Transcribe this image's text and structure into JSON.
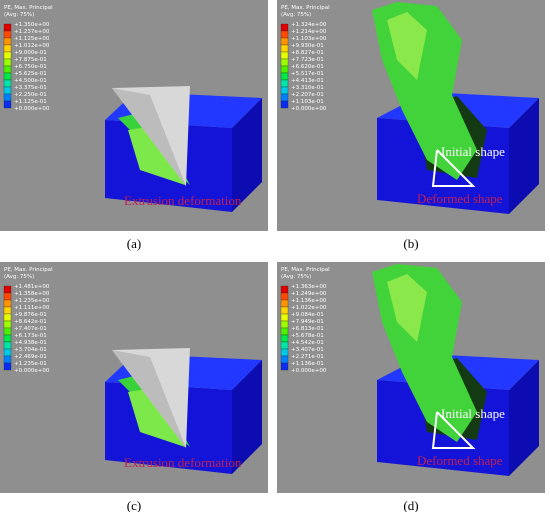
{
  "panels": [
    {
      "legend_title": "PE, Max. Principal",
      "legend_subtitle": "(Avg: 75%)",
      "legend_labels": [
        "+1.350e+00",
        "+1.237e+00",
        "+1.125e+00",
        "+1.012e+00",
        "+9.000e-01",
        "+7.875e-01",
        "+6.750e-01",
        "+5.625e-01",
        "+4.500e-01",
        "+3.375e-01",
        "+2.250e-01",
        "+1.125e-01",
        "+0.000e+00"
      ],
      "annotations": [
        "Extrusion deformation"
      ],
      "caption": "(a)"
    },
    {
      "legend_title": "PE, Max. Principal",
      "legend_subtitle": "(Avg: 75%)",
      "legend_labels": [
        "+1.324e+00",
        "+1.214e+00",
        "+1.103e+00",
        "+9.930e-01",
        "+8.827e-01",
        "+7.723e-01",
        "+6.620e-01",
        "+5.517e-01",
        "+4.413e-01",
        "+3.310e-01",
        "+2.207e-01",
        "+1.103e-01",
        "+0.000e+00"
      ],
      "annotations": [
        "Initial shape",
        "Deformed shape"
      ],
      "caption": "(b)"
    },
    {
      "legend_title": "PE, Max. Principal",
      "legend_subtitle": "(Avg: 75%)",
      "legend_labels": [
        "+1.481e+00",
        "+1.358e+00",
        "+1.235e+00",
        "+1.111e+00",
        "+9.876e-01",
        "+8.642e-01",
        "+7.407e-01",
        "+6.173e-01",
        "+4.938e-01",
        "+3.704e-01",
        "+2.469e-01",
        "+1.235e-01",
        "+0.000e+00"
      ],
      "annotations": [
        "Extrusion deformation"
      ],
      "caption": "(c)"
    },
    {
      "legend_title": "PE, Max. Principal",
      "legend_subtitle": "(Avg: 75%)",
      "legend_labels": [
        "+1.363e+00",
        "+1.249e+00",
        "+1.136e+00",
        "+1.022e+00",
        "+9.084e-01",
        "+7.949e-01",
        "+6.813e-01",
        "+5.678e-01",
        "+4.542e-01",
        "+3.407e-01",
        "+2.271e-01",
        "+1.136e-01",
        "+0.000e+00"
      ],
      "annotations": [
        "Initial shape",
        "Deformed shape"
      ],
      "caption": "(d)"
    }
  ]
}
